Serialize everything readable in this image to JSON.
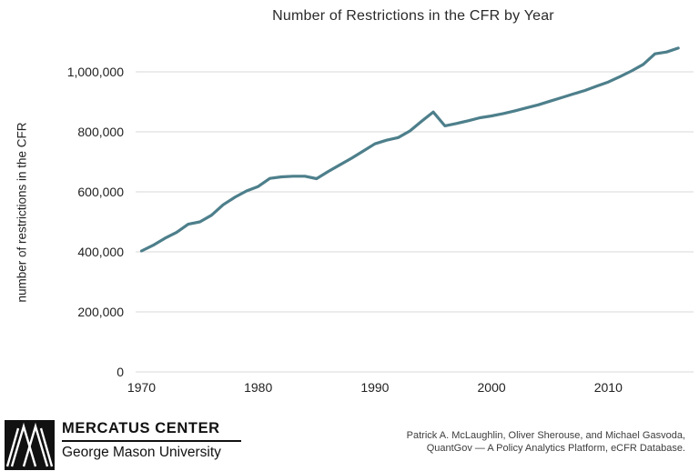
{
  "title": "Number of Restrictions in the CFR by Year",
  "y_axis": {
    "label": "number of restrictions in the CFR",
    "ticks": [
      {
        "label": "0",
        "value": 0
      },
      {
        "label": "200,000",
        "value": 200000
      },
      {
        "label": "400,000",
        "value": 400000
      },
      {
        "label": "600,000",
        "value": 600000
      },
      {
        "label": "800,000",
        "value": 800000
      },
      {
        "label": "1,000,000",
        "value": 1000000
      }
    ]
  },
  "x_axis": {
    "ticks": [
      {
        "label": "1970",
        "value": 1970
      },
      {
        "label": "1980",
        "value": 1980
      },
      {
        "label": "1990",
        "value": 1990
      },
      {
        "label": "2000",
        "value": 2000
      },
      {
        "label": "2010",
        "value": 2010
      }
    ]
  },
  "chart_data": {
    "type": "line",
    "title": "Number of Restrictions in the CFR by Year",
    "xlabel": "",
    "ylabel": "number of restrictions in the CFR",
    "xlim": [
      1970,
      2016
    ],
    "ylim": [
      0,
      1100000
    ],
    "grid": "horizontal",
    "legend": "none",
    "x": [
      1970,
      1971,
      1972,
      1973,
      1974,
      1975,
      1976,
      1977,
      1978,
      1979,
      1980,
      1981,
      1982,
      1983,
      1984,
      1985,
      1986,
      1987,
      1988,
      1989,
      1990,
      1991,
      1992,
      1993,
      1994,
      1995,
      1996,
      1997,
      1998,
      1999,
      2000,
      2001,
      2002,
      2003,
      2004,
      2005,
      2006,
      2007,
      2008,
      2009,
      2010,
      2011,
      2012,
      2013,
      2014,
      2015,
      2016
    ],
    "series": [
      {
        "name": "number of restrictions in the CFR",
        "values": [
          403000,
          422000,
          445000,
          465000,
          492000,
          500000,
          522000,
          557000,
          582000,
          603000,
          618000,
          645000,
          650000,
          652000,
          652000,
          644000,
          668000,
          690000,
          712000,
          736000,
          760000,
          772000,
          781000,
          803000,
          835000,
          866000,
          820000,
          828000,
          837000,
          847000,
          853000,
          861000,
          870000,
          880000,
          890000,
          902000,
          914000,
          926000,
          938000,
          952000,
          966000,
          984000,
          1003000,
          1025000,
          1060000,
          1066000,
          1079000
        ]
      }
    ]
  },
  "footer": {
    "logo_name": "MERCATUS CENTER",
    "logo_sub": "George Mason University",
    "credit_line1": "Patrick A. McLaughlin, Oliver Sherouse, and Michael Gasvoda,",
    "credit_line2": "QuantGov — A Policy Analytics Platform, eCFR Database."
  },
  "colors": {
    "line": "#4d7f8b",
    "grid": "#d9d9d9",
    "text": "#222222",
    "title_text": "#2a2a2a",
    "credit_text": "#3d3d3d",
    "logo_black": "#111111",
    "background": "#ffffff"
  }
}
